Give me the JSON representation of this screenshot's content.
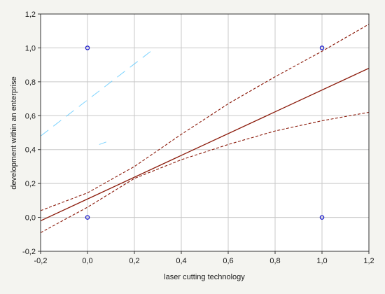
{
  "chart_data": {
    "type": "scatter",
    "title": "",
    "xlabel": "laser cutting technology",
    "ylabel": "development within an enterprise",
    "xlim": [
      -0.2,
      1.2
    ],
    "ylim": [
      -0.2,
      1.2
    ],
    "x_ticks": [
      "-0,2",
      "0,0",
      "0,2",
      "0,4",
      "0,6",
      "0,8",
      "1,0",
      "1,2"
    ],
    "y_ticks": [
      "-0,2",
      "0,0",
      "0,2",
      "0,4",
      "0,6",
      "0,8",
      "1,0",
      "1,2"
    ],
    "grid": true,
    "points": [
      {
        "x": 0.0,
        "y": 1.0
      },
      {
        "x": 1.0,
        "y": 1.0
      },
      {
        "x": 0.0,
        "y": 0.0
      },
      {
        "x": 1.0,
        "y": 0.0
      }
    ],
    "fit_line": [
      [
        -0.2,
        -0.02
      ],
      [
        1.2,
        0.88
      ]
    ],
    "confidence_upper": [
      [
        -0.2,
        0.04
      ],
      [
        0.0,
        0.145
      ],
      [
        0.2,
        0.3
      ],
      [
        0.4,
        0.49
      ],
      [
        0.6,
        0.67
      ],
      [
        0.8,
        0.83
      ],
      [
        1.0,
        0.98
      ],
      [
        1.2,
        1.14
      ]
    ],
    "confidence_lower": [
      [
        -0.2,
        -0.09
      ],
      [
        0.0,
        0.06
      ],
      [
        0.2,
        0.23
      ],
      [
        0.4,
        0.34
      ],
      [
        0.6,
        0.43
      ],
      [
        0.8,
        0.51
      ],
      [
        1.0,
        0.57
      ],
      [
        1.2,
        0.62
      ]
    ],
    "colors": {
      "points": "#1a1acc",
      "fit_line": "#8b1a0a",
      "confidence": "#8b1a0a",
      "grid": "#c8c8c8",
      "plot_background": "#ffffff",
      "artifact": "#66ccff"
    }
  }
}
